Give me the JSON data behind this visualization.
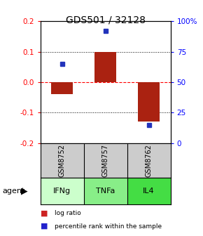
{
  "title": "GDS501 / 32128",
  "samples": [
    "GSM8752",
    "GSM8757",
    "GSM8762"
  ],
  "agents": [
    "IFNg",
    "TNFa",
    "IL4"
  ],
  "log_ratios": [
    -0.04,
    0.1,
    -0.13
  ],
  "percentile_ranks": [
    65,
    92,
    15
  ],
  "bar_color": "#aa2211",
  "dot_color": "#2233bb",
  "ylim_left": [
    -0.2,
    0.2
  ],
  "ylim_right": [
    0,
    100
  ],
  "yticks_left": [
    -0.2,
    -0.1,
    0.0,
    0.1,
    0.2
  ],
  "yticks_right": [
    0,
    25,
    50,
    75,
    100
  ],
  "ytick_labels_right": [
    "0",
    "25",
    "50",
    "75",
    "100%"
  ],
  "hlines": [
    -0.1,
    0.0,
    0.1
  ],
  "gray_color": "#cccccc",
  "green_light": "#ccffcc",
  "green_medium": "#88ee88",
  "green_dark": "#55dd55",
  "agent_greens": [
    "#ccffcc",
    "#88ee88",
    "#44dd44"
  ],
  "bar_width": 0.5,
  "legend_bar_color": "#cc2222",
  "legend_dot_color": "#2222cc"
}
